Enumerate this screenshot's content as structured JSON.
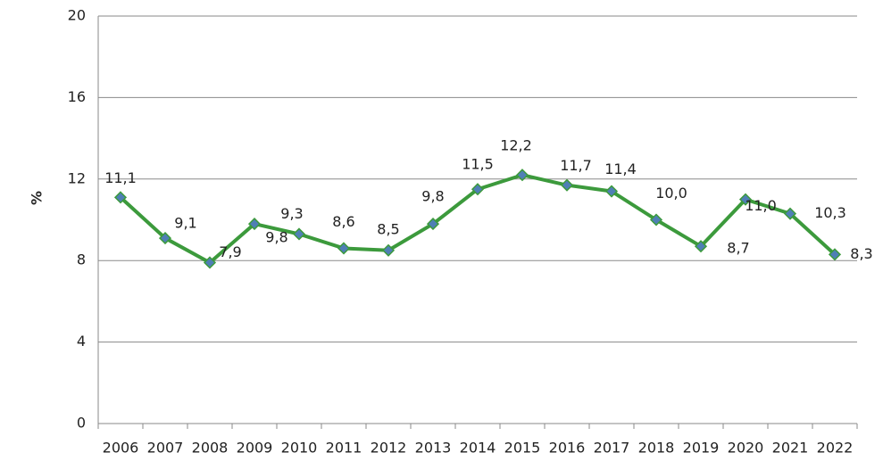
{
  "chart_data": {
    "type": "line",
    "y_label": "%",
    "categories": [
      "2006",
      "2007",
      "2008",
      "2009",
      "2010",
      "2011",
      "2012",
      "2013",
      "2014",
      "2015",
      "2016",
      "2017",
      "2018",
      "2019",
      "2020",
      "2021",
      "2022"
    ],
    "series": [
      {
        "name": null,
        "color": "#3c9a3c",
        "marker_color": "#4f7fb5",
        "values": [
          11.1,
          9.1,
          7.9,
          9.8,
          9.3,
          8.6,
          8.5,
          9.8,
          11.5,
          12.2,
          11.7,
          11.4,
          10.0,
          8.7,
          11.0,
          10.3,
          8.3
        ],
        "value_labels": [
          "11,1",
          "9,1",
          "7,9",
          "9,8",
          "9,3",
          "8,6",
          "8,5",
          "9,8",
          "11,5",
          "12,2",
          "11,7",
          "11,4",
          "10,0",
          "8,7",
          "11,0",
          "10,3",
          "8,3"
        ]
      }
    ],
    "ylim": [
      0,
      20
    ],
    "yticks": [
      0,
      4,
      8,
      12,
      16,
      20
    ],
    "grid": true
  }
}
